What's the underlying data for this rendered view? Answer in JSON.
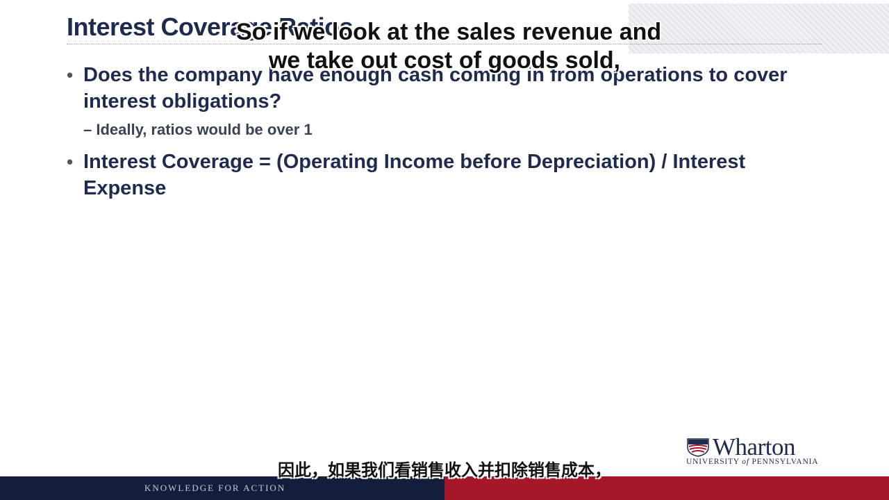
{
  "slide": {
    "title": "Interest Coverage Ratios",
    "bullets": [
      {
        "text": "Does the company have enough cash coming in from operations to cover interest obligations?"
      },
      {
        "text": "Interest Coverage = (Operating Income before Depreciation) / Interest Expense"
      }
    ],
    "sub_bullet": "– Ideally, ratios would be over 1"
  },
  "captions": {
    "en_line1": "So if we look at the sales revenue and",
    "en_line2": "we take out cost of goods sold,",
    "zh": "因此，如果我们看销售收入并扣除销售成本，"
  },
  "logo": {
    "name": "Wharton",
    "university_prefix": "UNIVERSITY",
    "university_of": "of",
    "university_suffix": "PENNSYLVANIA"
  },
  "footer": {
    "tagline": "KNOWLEDGE FOR ACTION"
  },
  "colors": {
    "navy": "#1f2a4f",
    "footer_navy": "#141d3a",
    "footer_red": "#a5182a"
  }
}
